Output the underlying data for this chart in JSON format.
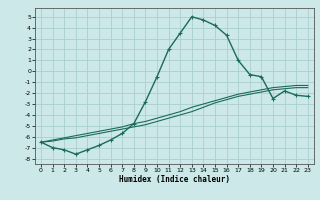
{
  "title": "",
  "xlabel": "Humidex (Indice chaleur)",
  "bg_color": "#cce8e8",
  "grid_color": "#aacfcf",
  "line_color": "#1a6b5a",
  "xlim": [
    -0.5,
    23.5
  ],
  "ylim": [
    -8.5,
    5.8
  ],
  "xticks": [
    0,
    1,
    2,
    3,
    4,
    5,
    6,
    7,
    8,
    9,
    10,
    11,
    12,
    13,
    14,
    15,
    16,
    17,
    18,
    19,
    20,
    21,
    22,
    23
  ],
  "yticks": [
    -8,
    -7,
    -6,
    -5,
    -4,
    -3,
    -2,
    -1,
    0,
    1,
    2,
    3,
    4,
    5
  ],
  "series": [
    {
      "x": [
        0,
        1,
        2,
        3,
        4,
        5,
        6,
        7,
        8,
        9,
        10,
        11,
        12,
        13,
        14,
        15,
        16,
        17,
        18,
        19,
        20,
        21,
        22,
        23
      ],
      "y": [
        -6.5,
        -7.0,
        -7.2,
        -7.6,
        -7.2,
        -6.8,
        -6.3,
        -5.7,
        -4.8,
        -2.8,
        -0.5,
        2.0,
        3.5,
        5.0,
        4.7,
        4.2,
        3.3,
        1.0,
        -0.3,
        -0.5,
        -2.5,
        -1.8,
        -2.2,
        -2.3
      ],
      "marker": "+",
      "markersize": 3,
      "linewidth": 1.0
    },
    {
      "x": [
        0,
        1,
        2,
        3,
        4,
        5,
        6,
        7,
        8,
        9,
        10,
        11,
        12,
        13,
        14,
        15,
        16,
        17,
        18,
        19,
        20,
        21,
        22,
        23
      ],
      "y": [
        -6.5,
        -6.4,
        -6.2,
        -6.1,
        -5.9,
        -5.7,
        -5.5,
        -5.3,
        -5.1,
        -4.9,
        -4.6,
        -4.3,
        -4.0,
        -3.7,
        -3.3,
        -2.9,
        -2.6,
        -2.3,
        -2.1,
        -1.9,
        -1.7,
        -1.6,
        -1.5,
        -1.5
      ],
      "marker": null,
      "markersize": 0,
      "linewidth": 0.8
    },
    {
      "x": [
        0,
        1,
        2,
        3,
        4,
        5,
        6,
        7,
        8,
        9,
        10,
        11,
        12,
        13,
        14,
        15,
        16,
        17,
        18,
        19,
        20,
        21,
        22,
        23
      ],
      "y": [
        -6.5,
        -6.3,
        -6.1,
        -5.9,
        -5.7,
        -5.5,
        -5.3,
        -5.1,
        -4.8,
        -4.6,
        -4.3,
        -4.0,
        -3.7,
        -3.3,
        -3.0,
        -2.7,
        -2.4,
        -2.1,
        -1.9,
        -1.7,
        -1.5,
        -1.4,
        -1.3,
        -1.3
      ],
      "marker": null,
      "markersize": 0,
      "linewidth": 0.8
    }
  ]
}
